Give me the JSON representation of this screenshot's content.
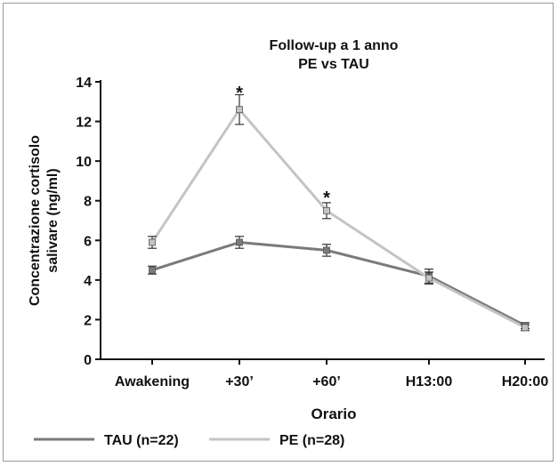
{
  "chart_data": {
    "type": "line",
    "title": "Follow-up a 1 anno",
    "subtitle": "PE vs TAU",
    "xlabel": "Orario",
    "ylabel_line1": "Concentrazione cortisolo",
    "ylabel_line2": "salivare (ng/ml)",
    "categories": [
      "Awakening",
      "+30’",
      "+60’",
      "H13:00",
      "H20:00"
    ],
    "ylim": [
      0,
      14
    ],
    "yticks": [
      "0",
      "2",
      "4",
      "6",
      "8",
      "10",
      "12",
      "14"
    ],
    "series": [
      {
        "name": "TAU (n=22)",
        "color": "#7a7a7a",
        "values": [
          4.5,
          5.9,
          5.5,
          4.2,
          1.7
        ],
        "errors": [
          0.2,
          0.3,
          0.3,
          0.35,
          0.15
        ]
      },
      {
        "name": "PE (n=28)",
        "color": "#c4c4c4",
        "values": [
          5.9,
          12.6,
          7.5,
          4.1,
          1.6
        ],
        "errors": [
          0.3,
          0.75,
          0.4,
          0.3,
          0.15
        ]
      }
    ],
    "annotations": [
      {
        "category": "+30’",
        "text": "*",
        "value": 13.6
      },
      {
        "category": "+60’",
        "text": "*",
        "value": 8.3
      }
    ],
    "grid": false,
    "legend_position": "bottom-left"
  }
}
